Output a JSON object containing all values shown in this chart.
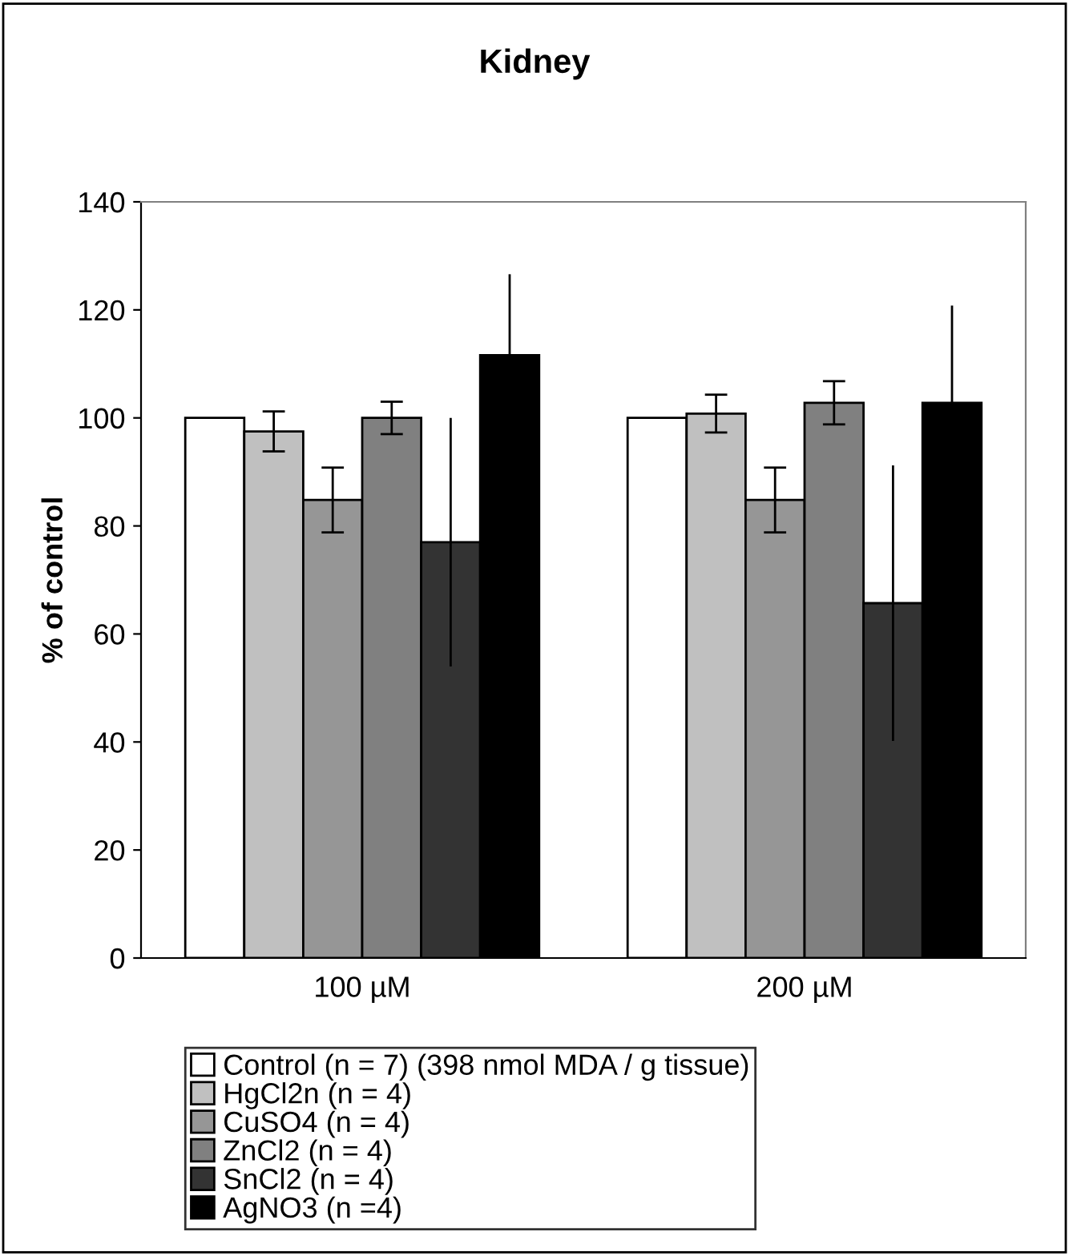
{
  "chart_data": {
    "type": "bar",
    "title": "Kidney",
    "ylabel": "% of control",
    "categories": [
      "100 µM",
      "200 µM"
    ],
    "series": [
      {
        "name": "Control (n = 7) (398 nmol MDA / g tissue)",
        "color": "#ffffff",
        "values": [
          100,
          100
        ]
      },
      {
        "name": "HgCl2n (n = 4)",
        "color": "#c0c0c0",
        "values": [
          97.5,
          100.8
        ],
        "errors": [
          3.7,
          3.5
        ]
      },
      {
        "name": "CuSO4 (n = 4)",
        "color": "#969696",
        "values": [
          84.8,
          84.8
        ],
        "errors": [
          6,
          6
        ]
      },
      {
        "name": "ZnCl2 (n = 4)",
        "color": "#808080",
        "values": [
          100,
          102.8
        ],
        "errors": [
          3,
          4
        ]
      },
      {
        "name": "SnCl2 (n = 4)",
        "color": "#333333",
        "values": [
          77,
          65.7
        ],
        "errors": [
          23,
          25.5
        ]
      },
      {
        "name": "AgNO3 (n =4)",
        "color": "#000000",
        "values": [
          111.6,
          102.8
        ],
        "errors": [
          15,
          18
        ]
      }
    ],
    "ylim": [
      0,
      140
    ],
    "yticks": [
      0,
      20,
      40,
      60,
      80,
      100,
      120,
      140
    ],
    "grid": false,
    "legend": "bottom"
  }
}
